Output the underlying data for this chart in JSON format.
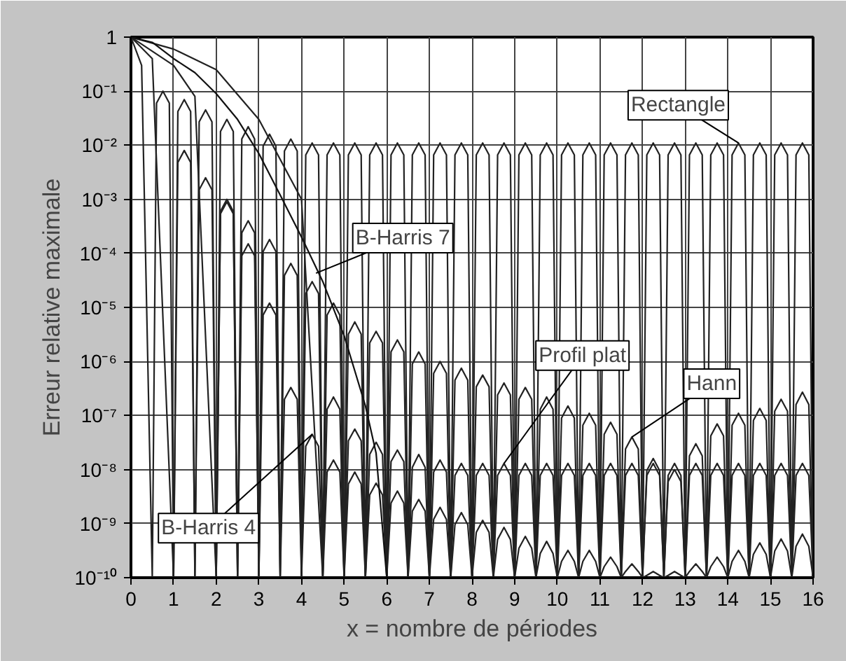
{
  "chart_data": {
    "type": "line",
    "xlabel": "x = nombre de périodes",
    "ylabel": "Erreur relative maximale",
    "log": "y",
    "grid": true,
    "marker": "none",
    "line_style": "solid",
    "xlim": [
      0,
      16
    ],
    "xticks": [
      0,
      1,
      2,
      3,
      4,
      5,
      6,
      7,
      8,
      9,
      10,
      11,
      12,
      13,
      14,
      15,
      16
    ],
    "ylim": [
      1e-10,
      1
    ],
    "yticks": [
      1,
      {
        "value": 0.1,
        "label": "10⁻¹"
      },
      {
        "value": 0.01,
        "label": "10⁻²"
      },
      {
        "value": 0.001,
        "label": "10⁻³"
      },
      {
        "value": 0.0001,
        "label": "10⁻⁴"
      },
      {
        "value": 1e-05,
        "label": "10⁻⁵"
      },
      {
        "value": 1e-06,
        "label": "10⁻⁶"
      },
      {
        "value": 1e-07,
        "label": "10⁻⁷"
      },
      {
        "value": 1e-08,
        "label": "10⁻⁸"
      },
      {
        "value": 1e-09,
        "label": "10⁻⁹"
      },
      {
        "value": 1e-10,
        "label": "10⁻¹⁰"
      }
    ],
    "series": [
      {
        "color": "#222222",
        "x": [
          0,
          0.25,
          0.5,
          0.6,
          0.75,
          0.9,
          1,
          1.1,
          1.25,
          1.4,
          1.5,
          1.6,
          1.75,
          1.9,
          2,
          2.1,
          2.25,
          2.4,
          2.5,
          2.6,
          2.75,
          2.9,
          3,
          3.1,
          3.25,
          3.4,
          3.5,
          3.6,
          3.75,
          3.9,
          4,
          4.1,
          4.25,
          4.4,
          4.5,
          4.6,
          4.75,
          4.9,
          5,
          5.1,
          5.25,
          5.4,
          5.5,
          5.6,
          5.75,
          5.9,
          6,
          6.1,
          6.25,
          6.4,
          6.5,
          6.6,
          6.75,
          6.9,
          7,
          7.1,
          7.25,
          7.4,
          7.5,
          7.6,
          7.75,
          7.9,
          8,
          8.1,
          8.25,
          8.4,
          8.5,
          8.6,
          8.75,
          8.9,
          9,
          9.1,
          9.25,
          9.4,
          9.5,
          9.6,
          9.75,
          9.9,
          10,
          10.1,
          10.25,
          10.4,
          10.5,
          10.6,
          10.75,
          10.9,
          11,
          11.1,
          11.25,
          11.4,
          11.5,
          11.6,
          11.75,
          11.9,
          12,
          12.1,
          12.25,
          12.4,
          12.5,
          12.6,
          12.75,
          12.9,
          13,
          13.1,
          13.25,
          13.4,
          13.5,
          13.6,
          13.75,
          13.9,
          14,
          14.1,
          14.25,
          14.4,
          14.5,
          14.6,
          14.75,
          14.9,
          15,
          15.1,
          15.25,
          15.4,
          15.5,
          15.6,
          15.75,
          15.9,
          16
        ],
        "values": [
          1,
          0.3,
          1e-10,
          0.06,
          0.1,
          0.06,
          1e-10,
          0.042,
          0.07,
          0.042,
          1e-10,
          0.027,
          0.045,
          0.027,
          1e-10,
          0.018,
          0.03,
          0.018,
          1e-10,
          0.013,
          0.022,
          0.013,
          1e-10,
          0.0096,
          0.016,
          0.0096,
          1e-10,
          0.0078,
          0.013,
          0.0078,
          1e-10,
          0.0066,
          0.011,
          0.0066,
          1e-10,
          0.0066,
          0.011,
          0.0066,
          1e-10,
          0.0066,
          0.011,
          0.0066,
          1e-10,
          0.0066,
          0.011,
          0.0066,
          1e-10,
          0.0066,
          0.011,
          0.0066,
          1e-10,
          0.0066,
          0.011,
          0.0066,
          1e-10,
          0.0066,
          0.011,
          0.0066,
          1e-10,
          0.0066,
          0.011,
          0.0066,
          1e-10,
          0.0066,
          0.011,
          0.0066,
          1e-10,
          0.0066,
          0.011,
          0.0066,
          1e-10,
          0.0066,
          0.011,
          0.0066,
          1e-10,
          0.0066,
          0.011,
          0.0066,
          1e-10,
          0.0066,
          0.011,
          0.0066,
          1e-10,
          0.0066,
          0.011,
          0.0066,
          1e-10,
          0.0066,
          0.011,
          0.0066,
          1e-10,
          0.0066,
          0.011,
          0.0066,
          1e-10,
          0.0066,
          0.011,
          0.0066,
          1e-10,
          0.0066,
          0.011,
          0.0066,
          1e-10,
          0.0066,
          0.011,
          0.0066,
          1e-10,
          0.0066,
          0.011,
          0.0066,
          1e-10,
          0.0066,
          0.011,
          0.0066,
          1e-10,
          0.0066,
          0.011,
          0.0066,
          1e-10,
          0.0066,
          0.011,
          0.0066,
          1e-10,
          0.0066,
          0.011,
          0.0066,
          1e-10
        ]
      },
      {
        "color": "#222222",
        "x": [
          0,
          0.5,
          1,
          1.1,
          1.25,
          1.4,
          1.5,
          1.6,
          1.75,
          1.9,
          2,
          2.1,
          2.25,
          2.4,
          2.5,
          2.6,
          2.75,
          2.9,
          3,
          3.1,
          3.25,
          3.4,
          3.5,
          3.6,
          3.75,
          3.9,
          4,
          4.1,
          4.25,
          4.4,
          4.5,
          4.6,
          4.75,
          4.9,
          5,
          5.1,
          5.25,
          5.4,
          5.5,
          5.6,
          5.75,
          5.9,
          6,
          6.1,
          6.25,
          6.4,
          6.5,
          6.6,
          6.75,
          6.9,
          7,
          7.1,
          7.25,
          7.4,
          7.5,
          7.6,
          7.75,
          7.9,
          8,
          8.1,
          8.25,
          8.4,
          8.5,
          8.6,
          8.75,
          8.9,
          9,
          9.1,
          9.25,
          9.4,
          9.5,
          9.6,
          9.75,
          9.9,
          10,
          10.1,
          10.25,
          10.4,
          10.5,
          10.6,
          10.75,
          10.9,
          11,
          11.1,
          11.25,
          11.4,
          11.5,
          11.6,
          11.75,
          11.9,
          12,
          12.1,
          12.25,
          12.4,
          12.5,
          12.6,
          12.75,
          12.9,
          13,
          13.1,
          13.25,
          13.4,
          13.5,
          13.6,
          13.75,
          13.9,
          14,
          14.1,
          14.25,
          14.4,
          14.5,
          14.6,
          14.75,
          14.9,
          15,
          15.1,
          15.25,
          15.4,
          15.5,
          15.6,
          15.75,
          15.9,
          16
        ],
        "values": [
          1,
          0.4,
          1e-10,
          0.0048,
          0.008,
          0.0048,
          1e-10,
          0.0015,
          0.0025,
          0.0015,
          1e-10,
          0.00054,
          0.0009,
          0.00054,
          1e-10,
          0.00024,
          0.0004,
          0.00024,
          1e-10,
          0.000108,
          0.00018,
          0.000108,
          1e-10,
          3.9e-05,
          6.5e-05,
          3.9e-05,
          1e-10,
          1.8e-05,
          3e-05,
          1.8e-05,
          1e-10,
          7.2e-06,
          1.2e-05,
          7.2e-06,
          1e-10,
          3.2e-06,
          5.4e-06,
          3.2e-06,
          1e-10,
          2.2e-06,
          3.6e-06,
          2.2e-06,
          1e-10,
          1.5e-06,
          2.5e-06,
          1.5e-06,
          1e-10,
          9e-07,
          1.5e-06,
          9e-07,
          1e-10,
          6e-07,
          1e-06,
          6e-07,
          1e-10,
          4.5e-07,
          7.5e-07,
          4.5e-07,
          1e-10,
          3.4e-07,
          5.6e-07,
          3.4e-07,
          1e-10,
          2.4e-07,
          4e-07,
          2.4e-07,
          1e-10,
          2e-07,
          3.3e-07,
          2e-07,
          1e-10,
          1.3e-07,
          2.2e-07,
          1.3e-07,
          1e-10,
          9e-08,
          1.5e-07,
          9e-08,
          1e-10,
          6.6e-08,
          1.1e-07,
          6.6e-08,
          1e-10,
          4.5e-08,
          7.5e-08,
          4.5e-08,
          1e-10,
          2.4e-08,
          4e-08,
          2.4e-08,
          1e-10,
          9.6e-09,
          1.6e-08,
          9.6e-09,
          1e-10,
          6e-09,
          1e-08,
          6e-09,
          1e-10,
          1.8e-08,
          3e-08,
          1.8e-08,
          1e-10,
          4.2e-08,
          7e-08,
          4.2e-08,
          1e-10,
          6.6e-08,
          1.1e-07,
          6.6e-08,
          1e-10,
          8.1e-08,
          1.35e-07,
          8.1e-08,
          1e-10,
          1.2e-07,
          2e-07,
          1.2e-07,
          1e-10,
          1.6e-07,
          2.7e-07,
          1.6e-07,
          1e-10
        ]
      },
      {
        "color": "#222222",
        "x": [
          0,
          1,
          2,
          3,
          4,
          4.5,
          4.6,
          4.75,
          4.9,
          5,
          5.1,
          5.25,
          5.4,
          5.5,
          5.6,
          5.75,
          5.9,
          6,
          6.1,
          6.25,
          6.4,
          6.5,
          6.6,
          6.75,
          6.9,
          7,
          7.1,
          7.25,
          7.4,
          7.5,
          7.6,
          7.75,
          7.9,
          8,
          8.1,
          8.25,
          8.4,
          8.5,
          8.6,
          8.75,
          8.9,
          9,
          9.1,
          9.25,
          9.4,
          9.5,
          9.6,
          9.75,
          9.9,
          10,
          10.1,
          10.25,
          10.4,
          10.5,
          10.6,
          10.75,
          10.9,
          11,
          11.1,
          11.25,
          11.4,
          11.5,
          11.6,
          11.75,
          11.9,
          12,
          12.1,
          12.25,
          12.4,
          12.5,
          12.6,
          12.75,
          12.9,
          13,
          13.1,
          13.25,
          13.4,
          13.5,
          13.6,
          13.75,
          13.9,
          14,
          14.1,
          14.25,
          14.4,
          14.5,
          14.6,
          14.75,
          14.9,
          15,
          15.1,
          15.25,
          15.4,
          15.5,
          15.6,
          15.75,
          15.9,
          16
        ],
        "values": [
          1,
          0.6,
          0.25,
          0.03,
          0.001,
          1e-10,
          1.3e-07,
          2.2e-07,
          1.3e-07,
          1e-10,
          3.4e-08,
          5.6e-08,
          3.4e-08,
          1e-10,
          1.9e-08,
          3.2e-08,
          1.9e-08,
          1e-10,
          1.4e-08,
          2.3e-08,
          1.4e-08,
          1e-10,
          1.1e-08,
          1.9e-08,
          1.1e-08,
          1e-10,
          9e-09,
          1.5e-08,
          9e-09,
          1e-10,
          7.8e-09,
          1.3e-08,
          7.8e-09,
          1e-10,
          7.8e-09,
          1.3e-08,
          7.8e-09,
          1e-10,
          7.8e-09,
          1.3e-08,
          7.8e-09,
          1e-10,
          7.8e-09,
          1.3e-08,
          7.8e-09,
          1e-10,
          7.8e-09,
          1.3e-08,
          7.8e-09,
          1e-10,
          7.8e-09,
          1.3e-08,
          7.8e-09,
          1e-10,
          7.8e-09,
          1.3e-08,
          7.8e-09,
          1e-10,
          7.8e-09,
          1.3e-08,
          7.8e-09,
          1e-10,
          7.8e-09,
          1.3e-08,
          7.8e-09,
          1e-10,
          7.8e-09,
          1.3e-08,
          7.8e-09,
          1e-10,
          7.8e-09,
          1.3e-08,
          7.8e-09,
          1e-10,
          7.8e-09,
          1.3e-08,
          7.8e-09,
          1e-10,
          7.8e-09,
          1.3e-08,
          7.8e-09,
          1e-10,
          7.8e-09,
          1.3e-08,
          7.8e-09,
          1e-10,
          7.8e-09,
          1.3e-08,
          7.8e-09,
          1e-10,
          7.8e-09,
          1.3e-08,
          7.8e-09,
          1e-10,
          7.8e-09,
          1.3e-08,
          7.8e-09,
          1e-10
        ]
      },
      {
        "color": "#222222",
        "x": [
          0,
          1,
          1.5,
          2,
          2.1,
          2.25,
          2.4,
          2.5,
          2.6,
          2.75,
          2.9,
          3,
          3.1,
          3.25,
          3.4,
          3.5,
          3.6,
          3.75,
          3.9,
          4,
          4.1,
          4.25,
          4.4,
          4.5,
          4.6,
          4.75,
          4.9,
          5,
          5.1,
          5.25,
          5.4,
          5.5,
          5.6,
          5.75,
          5.9,
          6,
          6.1,
          6.25,
          6.4,
          6.5,
          6.6,
          6.75,
          6.9,
          7,
          7.1,
          7.25,
          7.4,
          7.5,
          7.6,
          7.75,
          7.9,
          8,
          8.1,
          8.25,
          8.4,
          8.5,
          8.6,
          8.75,
          8.9,
          9,
          9.1,
          9.25,
          9.4,
          9.5,
          9.6,
          9.75,
          9.9,
          10,
          10.1,
          10.25,
          10.4,
          10.5,
          10.6,
          10.75,
          10.9,
          11,
          11.1,
          11.25,
          11.4,
          11.5,
          11.6,
          11.75,
          11.9,
          12,
          12.1,
          12.25,
          12.4,
          12.5,
          12.6,
          12.75,
          12.9,
          13,
          13.1,
          13.25,
          13.4,
          13.5,
          13.6,
          13.75,
          13.9,
          14,
          14.1,
          14.25,
          14.4,
          14.5,
          14.6,
          14.75,
          14.9,
          15,
          15.1,
          15.25,
          15.4,
          15.5,
          15.6,
          15.75,
          15.9,
          16
        ],
        "values": [
          1,
          0.3,
          0.08,
          1e-10,
          0.0006,
          0.001,
          0.0006,
          1e-10,
          9e-05,
          0.00015,
          9e-05,
          1e-10,
          7.2e-06,
          1.2e-05,
          7.2e-06,
          1e-10,
          2e-07,
          3.3e-07,
          2e-07,
          1e-10,
          2.7e-08,
          4.5e-08,
          2.7e-08,
          1e-10,
          9e-09,
          1.5e-08,
          9e-09,
          1e-10,
          5.4e-09,
          9e-09,
          5.4e-09,
          1e-10,
          3.4e-09,
          5.6e-09,
          3.4e-09,
          1e-10,
          2.4e-09,
          4e-09,
          2.4e-09,
          1e-10,
          1.7e-09,
          2.8e-09,
          1.7e-09,
          1e-10,
          1.2e-09,
          2e-09,
          1.2e-09,
          1e-10,
          9.6e-10,
          1.6e-09,
          9.6e-10,
          1e-10,
          6.9e-10,
          1.15e-09,
          6.9e-10,
          1e-10,
          5.1e-10,
          8.5e-10,
          5.1e-10,
          1e-10,
          3.5e-10,
          5.8e-10,
          3.5e-10,
          1e-10,
          2.8e-10,
          4.7e-10,
          2.8e-10,
          1e-10,
          2e-10,
          3.2e-10,
          2e-10,
          1e-10,
          2e-10,
          3.2e-10,
          2e-10,
          1e-10,
          1.6e-10,
          2.4e-10,
          1.6e-10,
          1e-10,
          1.3e-10,
          1.8e-10,
          1.3e-10,
          1e-10,
          1.1e-10,
          1.3e-10,
          1.1e-10,
          1e-10,
          1.1e-10,
          1.3e-10,
          1.1e-10,
          1e-10,
          1.3e-10,
          1.8e-10,
          1.3e-10,
          1e-10,
          1.6e-10,
          2.4e-10,
          1.6e-10,
          1e-10,
          2e-10,
          3.2e-10,
          2e-10,
          1e-10,
          2.7e-10,
          4.4e-10,
          2.7e-10,
          1e-10,
          3.1e-10,
          5.2e-10,
          3.1e-10,
          1e-10,
          3.8e-10,
          6.4e-10,
          3.8e-10,
          1e-10
        ]
      },
      {
        "color": "#111111",
        "x": [
          0,
          0.5,
          1,
          1.5,
          2,
          2.5,
          3,
          3.5,
          4,
          4.5,
          5,
          5.5,
          5.75,
          6,
          16
        ],
        "values": [
          1,
          0.8,
          0.4,
          0.22,
          0.09,
          0.03,
          0.007,
          0.0012,
          0.0002,
          3e-05,
          3e-06,
          1.5e-07,
          2e-08,
          1e-10,
          1e-10
        ]
      }
    ],
    "annotations": [
      {
        "text": "Rectangle",
        "x": 14.25,
        "y": 0.011
      },
      {
        "text": "B-Harris 7",
        "x": 4.34,
        "y": 4.3e-05
      },
      {
        "text": "B-Harris 4",
        "x": 4.25,
        "y": 4.5e-08
      },
      {
        "text": "Profil plat",
        "x": 8.75,
        "y": 1.3e-08
      },
      {
        "text": "Hann",
        "x": 11.75,
        "y": 4e-08
      }
    ]
  }
}
